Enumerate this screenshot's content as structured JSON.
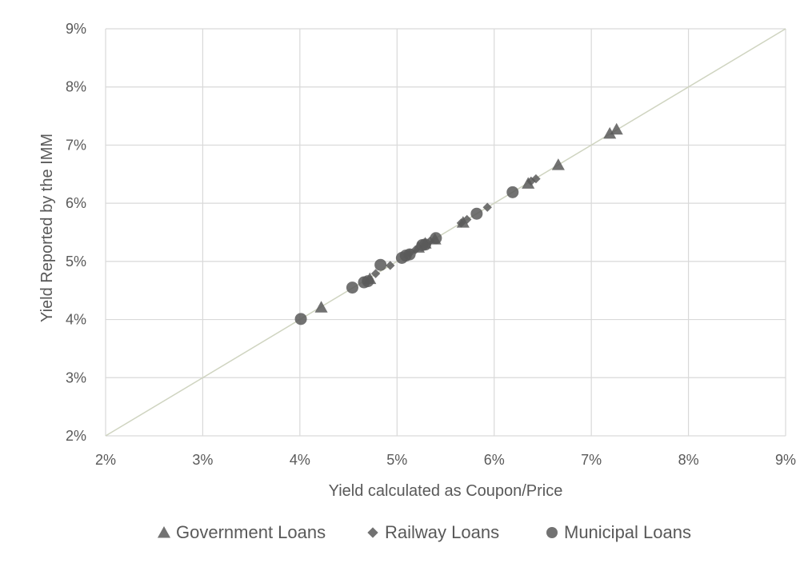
{
  "chart_data": {
    "type": "scatter",
    "title": "",
    "xlabel": "Yield calculated as Coupon/Price",
    "ylabel": "Yield Reported by the IMM",
    "xlim": [
      2,
      9
    ],
    "ylim": [
      2,
      9
    ],
    "x_ticks": [
      "2%",
      "3%",
      "4%",
      "5%",
      "6%",
      "7%",
      "8%",
      "9%"
    ],
    "y_ticks": [
      "2%",
      "3%",
      "4%",
      "5%",
      "6%",
      "7%",
      "8%",
      "9%"
    ],
    "grid": true,
    "legend_position": "bottom",
    "reference_line": {
      "from": [
        2,
        2
      ],
      "to": [
        9,
        9
      ],
      "color": "#cfd4c0"
    },
    "series": [
      {
        "name": "Government Loans",
        "marker": "triangle",
        "color": "#595959",
        "points": [
          [
            4.22,
            4.21
          ],
          [
            4.72,
            4.7
          ],
          [
            5.22,
            5.24
          ],
          [
            5.29,
            5.31
          ],
          [
            5.39,
            5.38
          ],
          [
            5.68,
            5.67
          ],
          [
            6.35,
            6.34
          ],
          [
            6.66,
            6.66
          ],
          [
            7.19,
            7.2
          ],
          [
            7.26,
            7.27
          ]
        ]
      },
      {
        "name": "Railway Loans",
        "marker": "diamond",
        "color": "#595959",
        "points": [
          [
            4.78,
            4.79
          ],
          [
            4.93,
            4.93
          ],
          [
            5.13,
            5.14
          ],
          [
            5.19,
            5.2
          ],
          [
            5.34,
            5.35
          ],
          [
            5.66,
            5.66
          ],
          [
            5.72,
            5.72
          ],
          [
            5.93,
            5.93
          ],
          [
            6.38,
            6.38
          ],
          [
            6.43,
            6.42
          ]
        ]
      },
      {
        "name": "Municipal Loans",
        "marker": "circle",
        "color": "#595959",
        "points": [
          [
            4.01,
            4.01
          ],
          [
            4.54,
            4.55
          ],
          [
            4.66,
            4.64
          ],
          [
            4.7,
            4.66
          ],
          [
            4.83,
            4.94
          ],
          [
            5.05,
            5.06
          ],
          [
            5.09,
            5.1
          ],
          [
            5.13,
            5.12
          ],
          [
            5.26,
            5.28
          ],
          [
            5.29,
            5.29
          ],
          [
            5.4,
            5.4
          ],
          [
            5.82,
            5.82
          ],
          [
            6.19,
            6.19
          ]
        ]
      }
    ]
  }
}
